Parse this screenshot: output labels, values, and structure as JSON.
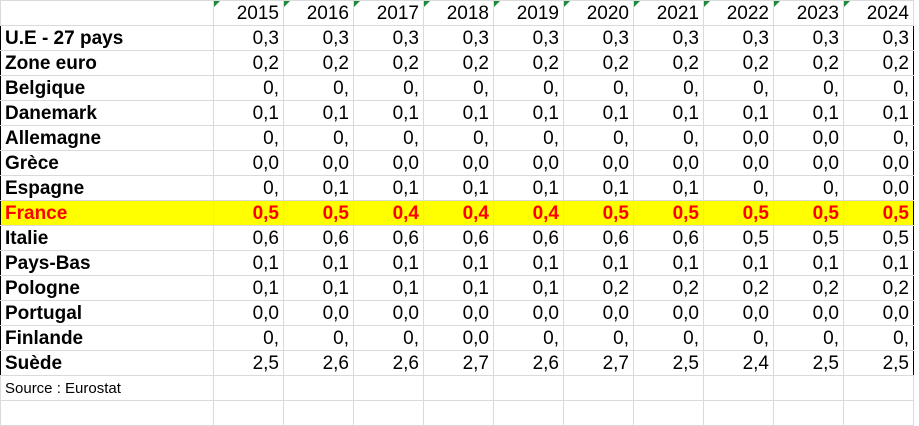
{
  "years": [
    "2015",
    "2016",
    "2017",
    "2018",
    "2019",
    "2020",
    "2021",
    "2022",
    "2023",
    "2024"
  ],
  "rows": [
    {
      "name": "U.E - 27 pays",
      "values": [
        "0,3",
        "0,3",
        "0,3",
        "0,3",
        "0,3",
        "0,3",
        "0,3",
        "0,3",
        "0,3",
        "0,3"
      ]
    },
    {
      "name": "Zone euro",
      "values": [
        "0,2",
        "0,2",
        "0,2",
        "0,2",
        "0,2",
        "0,2",
        "0,2",
        "0,2",
        "0,2",
        "0,2"
      ]
    },
    {
      "name": "Belgique",
      "values": [
        "0,",
        "0,",
        "0,",
        "0,",
        "0,",
        "0,",
        "0,",
        "0,",
        "0,",
        "0,"
      ]
    },
    {
      "name": "Danemark",
      "values": [
        "0,1",
        "0,1",
        "0,1",
        "0,1",
        "0,1",
        "0,1",
        "0,1",
        "0,1",
        "0,1",
        "0,1"
      ]
    },
    {
      "name": "Allemagne",
      "values": [
        "0,",
        "0,",
        "0,",
        "0,",
        "0,",
        "0,",
        "0,",
        "0,0",
        "0,0",
        "0,"
      ]
    },
    {
      "name": "Grèce",
      "values": [
        "0,0",
        "0,0",
        "0,0",
        "0,0",
        "0,0",
        "0,0",
        "0,0",
        "0,0",
        "0,0",
        "0,0"
      ]
    },
    {
      "name": "Espagne",
      "values": [
        "0,",
        "0,1",
        "0,1",
        "0,1",
        "0,1",
        "0,1",
        "0,1",
        "0,",
        "0,",
        "0,0"
      ]
    },
    {
      "name": "France",
      "highlight": true,
      "values": [
        "0,5",
        "0,5",
        "0,4",
        "0,4",
        "0,4",
        "0,5",
        "0,5",
        "0,5",
        "0,5",
        "0,5"
      ]
    },
    {
      "name": "Italie",
      "values": [
        "0,6",
        "0,6",
        "0,6",
        "0,6",
        "0,6",
        "0,6",
        "0,6",
        "0,5",
        "0,5",
        "0,5"
      ]
    },
    {
      "name": "Pays-Bas",
      "values": [
        "0,1",
        "0,1",
        "0,1",
        "0,1",
        "0,1",
        "0,1",
        "0,1",
        "0,1",
        "0,1",
        "0,1"
      ]
    },
    {
      "name": "Pologne",
      "values": [
        "0,1",
        "0,1",
        "0,1",
        "0,1",
        "0,1",
        "0,2",
        "0,2",
        "0,2",
        "0,2",
        "0,2"
      ]
    },
    {
      "name": "Portugal",
      "values": [
        "0,0",
        "0,0",
        "0,0",
        "0,0",
        "0,0",
        "0,0",
        "0,0",
        "0,0",
        "0,0",
        "0,0"
      ]
    },
    {
      "name": "Finlande",
      "values": [
        "0,",
        "0,",
        "0,",
        "0,0",
        "0,",
        "0,",
        "0,",
        "0,",
        "0,",
        "0,"
      ]
    },
    {
      "name": "Suède",
      "values": [
        "2,5",
        "2,6",
        "2,6",
        "2,7",
        "2,6",
        "2,7",
        "2,5",
        "2,4",
        "2,5",
        "2,5"
      ]
    }
  ],
  "source": "Source : Eurostat",
  "colors": {
    "highlight_bg": "#ffff00",
    "highlight_text": "#ff0000",
    "corner_marker": "#1e8a3a"
  }
}
